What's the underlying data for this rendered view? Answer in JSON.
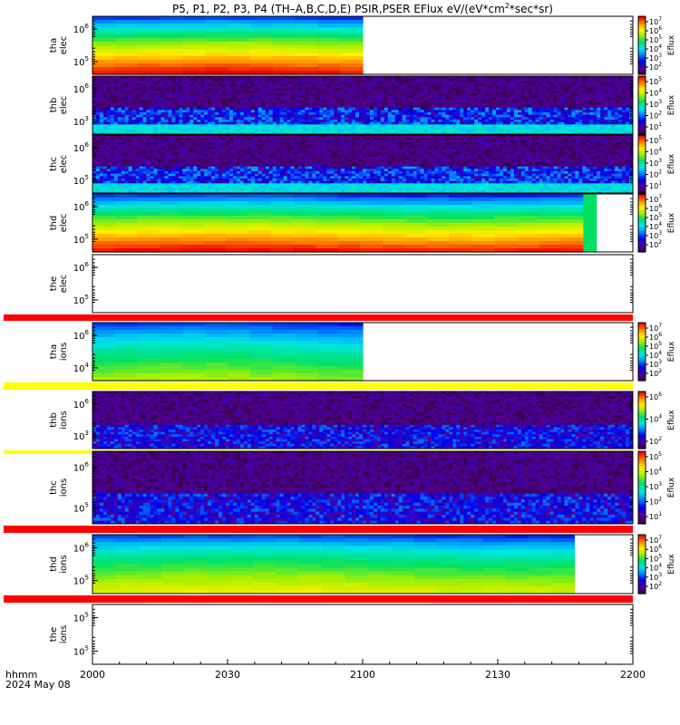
{
  "chart_data": {
    "type": "heatmap",
    "title": "P5, P1, P2, P3, P4 (TH–A,B,C,D,E) PSIR,PSER EFlux eV/(eV*cm",
    "title_sup": "2",
    "title_suffix": "*sec*sr)",
    "x_axis": {
      "ticks": [
        {
          "value": 0,
          "label": "2000"
        },
        {
          "value": 30,
          "label": "2030"
        },
        {
          "value": 60,
          "label": "2100"
        },
        {
          "value": 90,
          "label": "2130"
        },
        {
          "value": 120,
          "label": "2200"
        }
      ],
      "range_minutes": [
        0,
        120
      ],
      "label_line1": "hhmm",
      "label_line2": "2024 May 08"
    },
    "colorbar_label": "Eflux",
    "panels": [
      {
        "id": "tha-elec",
        "probe": "tha",
        "species": "elec",
        "mode": "smooth",
        "data_end_min": 60,
        "profile": "high",
        "yticks": [
          {
            "exp": "6"
          },
          {
            "exp": "5"
          }
        ],
        "cbar_ticks": [
          "7",
          "6",
          "5",
          "4",
          "3",
          "2"
        ],
        "bar_below": "none"
      },
      {
        "id": "thb-elec",
        "probe": "thb",
        "species": "elec",
        "mode": "noisy",
        "data_end_min": 120,
        "profile": "low",
        "yticks": [
          {
            "exp": "6"
          },
          {
            "exp": "3"
          }
        ],
        "cbar_ticks": [
          "5",
          "4",
          "3",
          "2",
          "1"
        ],
        "bar_below": "none"
      },
      {
        "id": "thc-elec",
        "probe": "thc",
        "species": "elec",
        "mode": "noisy",
        "data_end_min": 120,
        "profile": "low",
        "yticks": [
          {
            "exp": "6"
          },
          {
            "exp": "5"
          }
        ],
        "cbar_ticks": [
          "5",
          "4",
          "3",
          "2",
          "1"
        ],
        "bar_below": "none"
      },
      {
        "id": "thd-elec",
        "probe": "thd",
        "species": "elec",
        "mode": "smooth",
        "data_end_min": 109,
        "profile": "high",
        "extra_green_until_min": 112,
        "yticks": [
          {
            "exp": "6"
          },
          {
            "exp": "5"
          }
        ],
        "cbar_ticks": [
          "7",
          "6",
          "5",
          "4",
          "3",
          "2"
        ],
        "bar_below": "none"
      },
      {
        "id": "the-elec",
        "probe": "the",
        "species": "elec",
        "mode": "empty",
        "data_end_min": 0,
        "profile": "none",
        "yticks": [
          {
            "exp": "6"
          },
          {
            "exp": "5"
          }
        ],
        "cbar_ticks": [],
        "bar_below": "red"
      },
      {
        "id": "tha-ions",
        "probe": "tha",
        "species": "ions",
        "mode": "smooth",
        "data_end_min": 60,
        "profile": "mid",
        "yticks": [
          {
            "exp": "6"
          },
          {
            "exp": "4"
          }
        ],
        "cbar_ticks": [
          "7",
          "6",
          "5",
          "4",
          "3",
          "2"
        ],
        "bar_below": "yellow"
      },
      {
        "id": "thb-ions",
        "probe": "thb",
        "species": "ions",
        "mode": "noisy",
        "data_end_min": 120,
        "profile": "ionlow",
        "yticks": [
          {
            "exp": "6"
          },
          {
            "exp": "3"
          }
        ],
        "cbar_ticks": [
          "6",
          "4",
          "2"
        ],
        "bar_below": "yellow"
      },
      {
        "id": "thc-ions",
        "probe": "thc",
        "species": "ions",
        "mode": "noisy",
        "data_end_min": 120,
        "profile": "ionlow",
        "yticks": [
          {
            "exp": "6"
          },
          {
            "exp": "5"
          }
        ],
        "cbar_ticks": [
          "5",
          "4",
          "3",
          "2",
          "1"
        ],
        "bar_below": "red"
      },
      {
        "id": "thd-ions",
        "probe": "thd",
        "species": "ions",
        "mode": "smooth",
        "data_end_min": 107,
        "profile": "mid2",
        "yticks": [
          {
            "exp": "6"
          },
          {
            "exp": "5"
          }
        ],
        "cbar_ticks": [
          "7",
          "6",
          "5",
          "4",
          "3",
          "2"
        ],
        "bar_below": "red"
      },
      {
        "id": "the-ions",
        "probe": "the",
        "species": "ions",
        "mode": "empty",
        "data_end_min": 0,
        "profile": "none",
        "yticks": [
          {
            "exp": "5"
          },
          {
            "exp": "5"
          }
        ],
        "cbar_ticks": [],
        "bar_below": "none"
      }
    ]
  }
}
